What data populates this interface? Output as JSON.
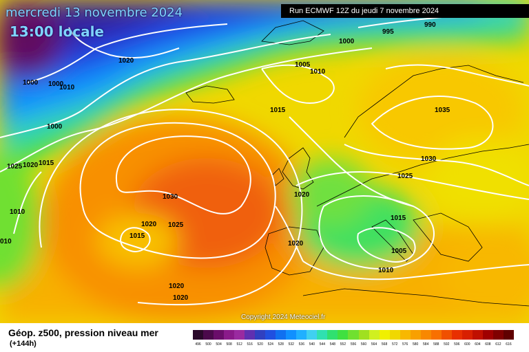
{
  "header": {
    "date_line": "mercredi 13 novembre 2024",
    "time_line": "13:00 locale",
    "run_line": "Run ECMWF 12Z du jeudi 7 novembre 2024"
  },
  "copyright": "Copyright 2024 Meteociel.fr",
  "legend": {
    "title": "Géop. z500, pression niveau mer",
    "subtitle": "(+144h)",
    "scale_values": [
      "496",
      "500",
      "504",
      "508",
      "512",
      "516",
      "520",
      "524",
      "528",
      "532",
      "536",
      "540",
      "544",
      "548",
      "552",
      "556",
      "560",
      "564",
      "568",
      "572",
      "576",
      "580",
      "584",
      "588",
      "592",
      "596",
      "600",
      "604",
      "608",
      "612",
      "616"
    ],
    "scale_colors": [
      "#2a0a2a",
      "#4b0a4b",
      "#6a0d6a",
      "#8a1a8a",
      "#9a2aa0",
      "#6030b0",
      "#3040c0",
      "#2050e0",
      "#1070f0",
      "#1090ff",
      "#20b0ff",
      "#40d0f0",
      "#30e0b0",
      "#30e070",
      "#40e040",
      "#70e030",
      "#a0e020",
      "#d0f020",
      "#f0f000",
      "#f0d800",
      "#f8b800",
      "#f8a000",
      "#f88800",
      "#f87000",
      "#f05000",
      "#e83000",
      "#d82000",
      "#c01000",
      "#a00000",
      "#800000",
      "#600000"
    ]
  },
  "isobar_labels": [
    {
      "text": "1020",
      "id": "iso-1020-a"
    },
    {
      "text": "1000",
      "id": "iso-1000-a"
    },
    {
      "text": "1000",
      "id": "iso-1000-b"
    },
    {
      "text": "1010",
      "id": "iso-1010-a"
    },
    {
      "text": "1000",
      "id": "iso-1000-c"
    },
    {
      "text": "1025",
      "id": "iso-1025-a"
    },
    {
      "text": "1020",
      "id": "iso-1020-b"
    },
    {
      "text": "1015",
      "id": "iso-1015-a"
    },
    {
      "text": "1010",
      "id": "iso-1010-b"
    },
    {
      "text": "010",
      "id": "iso-010"
    },
    {
      "text": "1030",
      "id": "iso-1030-a"
    },
    {
      "text": "1020",
      "id": "iso-1020-c"
    },
    {
      "text": "1025",
      "id": "iso-1025-b"
    },
    {
      "text": "1015",
      "id": "iso-1015-b"
    },
    {
      "text": "1020",
      "id": "iso-1020-d"
    },
    {
      "text": "1020",
      "id": "iso-1020-e"
    },
    {
      "text": "1020",
      "id": "iso-1020-f"
    },
    {
      "text": "1020",
      "id": "iso-1020-g"
    },
    {
      "text": "995",
      "id": "iso-995"
    },
    {
      "text": "990",
      "id": "iso-990"
    },
    {
      "text": "1000",
      "id": "iso-1000-d"
    },
    {
      "text": "1005",
      "id": "iso-1005-a"
    },
    {
      "text": "1010",
      "id": "iso-1010-c"
    },
    {
      "text": "1015",
      "id": "iso-1015-c"
    },
    {
      "text": "1035",
      "id": "iso-1035"
    },
    {
      "text": "1030",
      "id": "iso-1030-b"
    },
    {
      "text": "1025",
      "id": "iso-1025-c"
    },
    {
      "text": "1015",
      "id": "iso-1015-d"
    },
    {
      "text": "1005",
      "id": "iso-1005-b"
    },
    {
      "text": "1010",
      "id": "iso-1010-d"
    }
  ]
}
